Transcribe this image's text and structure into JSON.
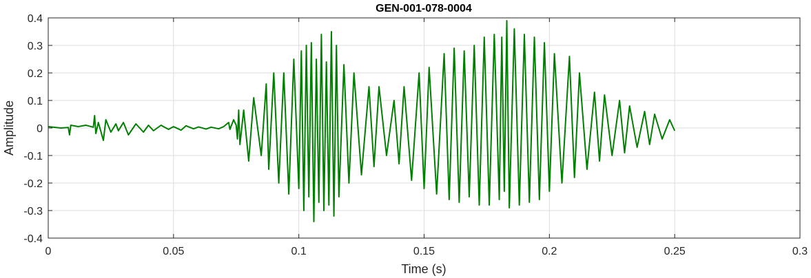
{
  "chart_data": {
    "type": "line",
    "title": "GEN-001-078-0004",
    "xlabel": "Time (s)",
    "ylabel": "Amplitude",
    "xlim": [
      0,
      0.3
    ],
    "ylim": [
      -0.4,
      0.4
    ],
    "xticks": [
      0,
      0.05,
      0.1,
      0.15,
      0.2,
      0.25,
      0.3
    ],
    "xtick_labels": [
      "0",
      "0.05",
      "0.1",
      "0.15",
      "0.2",
      "0.25",
      "0.3"
    ],
    "yticks": [
      -0.4,
      -0.3,
      -0.2,
      -0.1,
      0,
      0.1,
      0.2,
      0.3,
      0.4
    ],
    "ytick_labels": [
      "-0.4",
      "-0.3",
      "-0.2",
      "-0.1",
      "0",
      "0.1",
      "0.2",
      "0.3",
      "0.4"
    ],
    "grid": true,
    "line_color": "#008000",
    "series": [
      {
        "x": [
          0,
          0.005,
          0.008,
          0.0085,
          0.009,
          0.012,
          0.015,
          0.018,
          0.0185,
          0.019,
          0.02,
          0.022,
          0.023,
          0.025,
          0.027,
          0.028,
          0.03,
          0.032,
          0.035,
          0.038,
          0.04,
          0.042,
          0.045,
          0.048,
          0.05,
          0.053,
          0.055,
          0.058,
          0.06,
          0.063,
          0.065,
          0.068,
          0.07,
          0.072,
          0.0725,
          0.074,
          0.075,
          0.0755,
          0.076,
          0.0765,
          0.078,
          0.08,
          0.082,
          0.085,
          0.087,
          0.088,
          0.09,
          0.092,
          0.094,
          0.096,
          0.098,
          0.1,
          0.101,
          0.102,
          0.103,
          0.104,
          0.105,
          0.106,
          0.107,
          0.108,
          0.109,
          0.11,
          0.111,
          0.112,
          0.113,
          0.114,
          0.115,
          0.116,
          0.118,
          0.12,
          0.122,
          0.125,
          0.128,
          0.13,
          0.132,
          0.135,
          0.138,
          0.14,
          0.142,
          0.145,
          0.148,
          0.15,
          0.152,
          0.155,
          0.158,
          0.16,
          0.162,
          0.164,
          0.166,
          0.168,
          0.17,
          0.172,
          0.174,
          0.176,
          0.178,
          0.18,
          0.181,
          0.182,
          0.183,
          0.184,
          0.186,
          0.188,
          0.19,
          0.192,
          0.194,
          0.196,
          0.198,
          0.2,
          0.202,
          0.205,
          0.208,
          0.21,
          0.212,
          0.215,
          0.218,
          0.22,
          0.222,
          0.225,
          0.228,
          0.23,
          0.232,
          0.235,
          0.238,
          0.24,
          0.242,
          0.245,
          0.248,
          0.25
        ],
        "y": [
          0.005,
          0.0,
          0.002,
          -0.025,
          0.01,
          0.005,
          0.01,
          0.003,
          0.045,
          -0.02,
          0.02,
          -0.045,
          0.03,
          -0.015,
          0.015,
          -0.01,
          0.02,
          -0.025,
          0.015,
          -0.015,
          0.01,
          -0.01,
          0.01,
          -0.005,
          0.005,
          -0.008,
          0.008,
          -0.003,
          0.004,
          -0.004,
          0.003,
          -0.003,
          0.005,
          0.02,
          -0.005,
          0.03,
          0.01,
          -0.04,
          0.065,
          -0.06,
          0.065,
          -0.12,
          0.11,
          -0.1,
          0.16,
          -0.15,
          0.2,
          -0.2,
          0.2,
          -0.24,
          0.25,
          -0.22,
          0.28,
          -0.3,
          0.3,
          -0.25,
          0.31,
          -0.34,
          0.25,
          -0.27,
          0.34,
          -0.3,
          0.24,
          -0.28,
          0.35,
          -0.32,
          0.3,
          -0.25,
          0.23,
          -0.2,
          0.2,
          -0.17,
          0.15,
          -0.14,
          0.15,
          -0.1,
          0.1,
          -0.13,
          0.15,
          -0.19,
          0.2,
          -0.22,
          0.22,
          -0.24,
          0.27,
          -0.26,
          0.29,
          -0.27,
          0.28,
          -0.25,
          0.3,
          -0.28,
          0.33,
          -0.28,
          0.34,
          -0.26,
          0.33,
          -0.23,
          0.39,
          -0.29,
          0.36,
          -0.28,
          0.34,
          -0.27,
          0.33,
          -0.26,
          0.31,
          -0.23,
          0.27,
          -0.2,
          0.26,
          -0.18,
          0.2,
          -0.15,
          0.13,
          -0.12,
          0.12,
          -0.1,
          0.1,
          -0.09,
          0.08,
          -0.07,
          0.06,
          -0.06,
          0.05,
          -0.04,
          0.03,
          -0.01
        ]
      }
    ]
  }
}
